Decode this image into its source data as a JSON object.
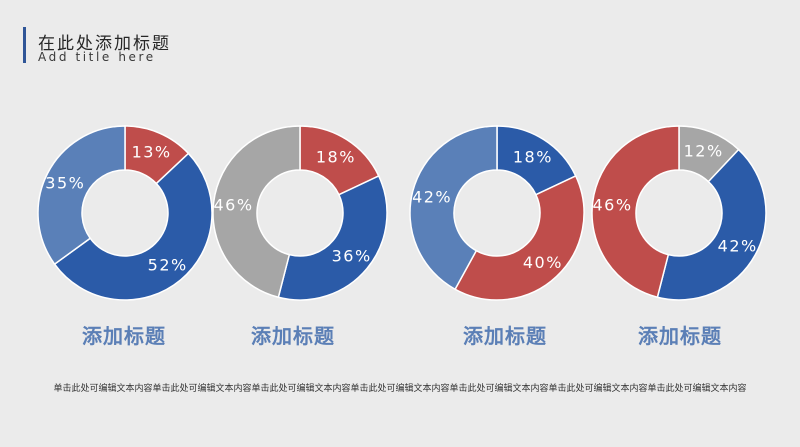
{
  "header": {
    "title": "在此处添加标题",
    "subtitle": "Add title here"
  },
  "colors": {
    "blue_dark": "#2b5ba8",
    "blue_light": "#5a80b8",
    "red": "#bf4d4b",
    "gray": "#a6a6a6",
    "accent_bar": "#2f5597"
  },
  "chart_data": [
    {
      "type": "pie",
      "title": "添加标题",
      "slices": [
        {
          "label": "13%",
          "value": 13,
          "color": "#bf4d4b"
        },
        {
          "label": "52%",
          "value": 52,
          "color": "#2b5ba8"
        },
        {
          "label": "35%",
          "value": 35,
          "color": "#5a80b8"
        }
      ]
    },
    {
      "type": "pie",
      "title": "添加标题",
      "slices": [
        {
          "label": "18%",
          "value": 18,
          "color": "#bf4d4b"
        },
        {
          "label": "36%",
          "value": 36,
          "color": "#2b5ba8"
        },
        {
          "label": "46%",
          "value": 46,
          "color": "#a6a6a6"
        }
      ]
    },
    {
      "type": "pie",
      "title": "添加标题",
      "slices": [
        {
          "label": "18%",
          "value": 18,
          "color": "#2b5ba8"
        },
        {
          "label": "40%",
          "value": 40,
          "color": "#bf4d4b"
        },
        {
          "label": "42%",
          "value": 42,
          "color": "#5a80b8"
        }
      ]
    },
    {
      "type": "pie",
      "title": "添加标题",
      "slices": [
        {
          "label": "12%",
          "value": 12,
          "color": "#a6a6a6"
        },
        {
          "label": "42%",
          "value": 42,
          "color": "#2b5ba8"
        },
        {
          "label": "46%",
          "value": 46,
          "color": "#bf4d4b"
        }
      ]
    }
  ],
  "footer": {
    "text": "单击此处可编辑文本内容单击此处可编辑文本内容单击此处可编辑文本内容单击此处可编辑文本内容单击此处可编辑文本内容单击此处可编辑文本内容单击此处可编辑文本内容"
  }
}
